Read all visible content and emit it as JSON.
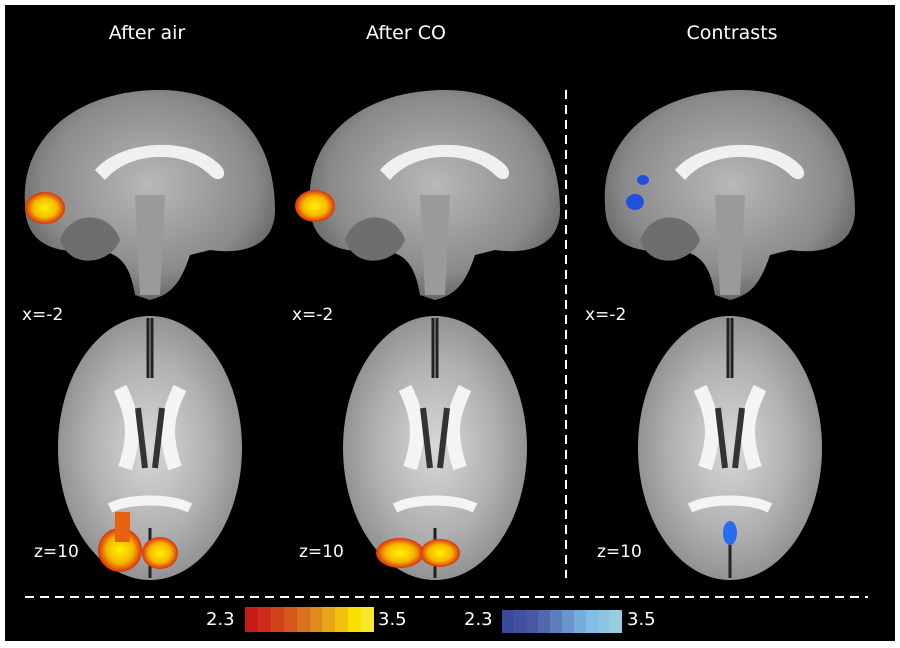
{
  "columns": [
    {
      "title": "After air",
      "sagittal_label": "x=-2",
      "axial_label": "z=10",
      "map": "positive"
    },
    {
      "title": "After CO",
      "sagittal_label": "x=-2",
      "axial_label": "z=10",
      "map": "positive"
    },
    {
      "title": "Contrasts",
      "sagittal_label": "x=-2",
      "axial_label": "z=10",
      "map": "negative"
    }
  ],
  "colorbars": [
    {
      "min": "2.3",
      "max": "3.5",
      "colors": [
        "#c81a16",
        "#cc2c18",
        "#d0421a",
        "#d4581c",
        "#d8701e",
        "#e08a1c",
        "#e8a41a",
        "#f2c20e",
        "#fae200",
        "#f5e82a"
      ]
    },
    {
      "min": "2.3",
      "max": "3.5",
      "colors": [
        "#3a4a9a",
        "#42509e",
        "#4858a4",
        "#5068ac",
        "#5c7ebc",
        "#6a96cc",
        "#78acdc",
        "#80bce6",
        "#8ec4e0",
        "#98cce0"
      ]
    }
  ]
}
